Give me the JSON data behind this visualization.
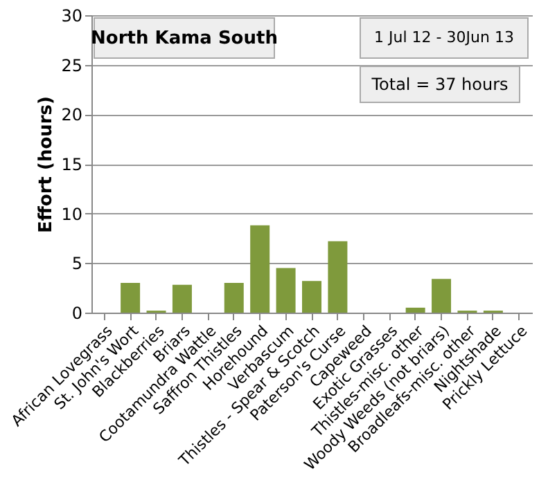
{
  "chart_data": {
    "type": "bar",
    "ylabel": "Effort  (hours)",
    "categories": [
      "African Lovegrass",
      "St. John's Wort",
      "Blackberries",
      "Briars",
      "Cootamundra Wattle",
      "Saffron Thistles",
      "Horehound",
      "Verbascum",
      "Thistles - Spear & Scotch",
      "Paterson's Curse",
      "Capeweed",
      "Exotic Grasses",
      "Thistles-misc. other",
      "Woody Weeds (not briars)",
      "Broadleafs-misc. other",
      "Nightshade",
      "Prickly Lettuce"
    ],
    "values": [
      0,
      3.0,
      0.2,
      2.8,
      0,
      3.0,
      8.8,
      4.5,
      3.2,
      7.2,
      0,
      0,
      0.5,
      3.4,
      0.2,
      0.2,
      0
    ],
    "color": "#7f9a3c",
    "ylim": [
      0,
      30
    ],
    "yticks": [
      0,
      5,
      10,
      15,
      20,
      25,
      30
    ],
    "grid": "y",
    "annotations": [
      "North Kama South",
      "1 Jul 12  -  30Jun 13",
      "Total = 37 hours"
    ]
  }
}
